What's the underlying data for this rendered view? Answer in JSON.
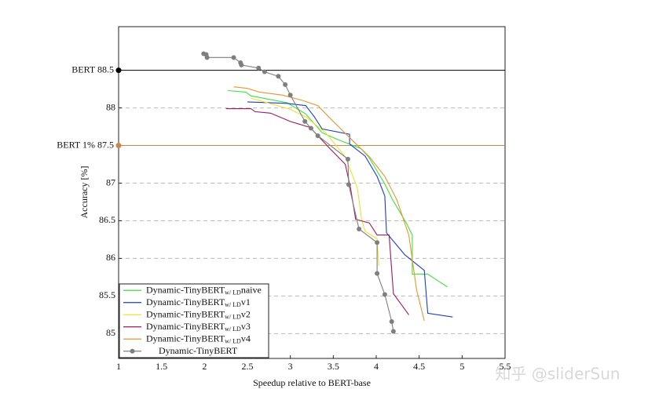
{
  "chart_data": {
    "type": "line",
    "xlabel": "Speedup relative to BERT-base",
    "ylabel": "Accuracy [%]",
    "xlim": [
      1,
      5.5
    ],
    "ylim": [
      84.67,
      89.08
    ],
    "xticks": [
      1,
      1.5,
      2,
      2.5,
      3,
      3.5,
      4,
      4.5,
      5,
      5.5
    ],
    "yticks": [
      85,
      85.5,
      86,
      86.5,
      87,
      88
    ],
    "grid": true,
    "legend": "lower left",
    "reference_lines": [
      {
        "value": 88.5,
        "label": "BERT 88.5",
        "color": "#000000"
      },
      {
        "value": 87.5,
        "label": "BERT 1% 87.5",
        "color": "#c8874a"
      }
    ],
    "series": [
      {
        "name": "Dynamic-TinyBERT",
        "subscript": "w/ LD",
        "suffix": "naive",
        "color": "#3ee03e",
        "markers": false,
        "x": [
          2.27,
          2.48,
          2.54,
          2.96,
          3.18,
          3.37,
          3.55,
          3.82,
          3.91,
          4.1,
          4.19,
          4.35,
          4.42,
          4.42,
          4.6,
          4.83
        ],
        "values": [
          88.23,
          88.21,
          88.16,
          88.07,
          87.92,
          87.67,
          87.58,
          87.46,
          87.35,
          86.99,
          86.78,
          86.47,
          86.31,
          85.79,
          85.79,
          85.62
        ]
      },
      {
        "name": "Dynamic-TinyBERT",
        "subscript": "w/ LD",
        "suffix": "v1",
        "color": "#1a3fc4",
        "markers": false,
        "x": [
          2.5,
          2.96,
          3.18,
          3.28,
          3.37,
          3.69,
          3.69,
          3.87,
          4.01,
          4.1,
          4.12,
          4.33,
          4.56,
          4.6,
          4.89
        ],
        "values": [
          88.08,
          88.06,
          88.03,
          87.88,
          87.72,
          87.65,
          87.52,
          87.36,
          87.09,
          86.83,
          86.34,
          86.05,
          85.84,
          85.27,
          85.22
        ]
      },
      {
        "name": "Dynamic-TinyBERT",
        "subscript": "w/ LD",
        "suffix": "v2",
        "color": "#f0e030",
        "markers": false,
        "x": [
          2.54,
          3.0,
          3.18,
          3.41,
          3.64,
          3.78,
          3.83,
          3.87,
          4.01,
          4.03
        ],
        "values": [
          88.13,
          87.98,
          87.88,
          87.67,
          87.35,
          86.94,
          86.52,
          86.36,
          86.26,
          85.9
        ]
      },
      {
        "name": "Dynamic-TinyBERT",
        "subscript": "w/ LD",
        "suffix": "v3",
        "color": "#9c1a5a",
        "markers": false,
        "x": [
          2.25,
          2.54,
          2.59,
          2.77,
          3.0,
          3.23,
          3.46,
          3.64,
          3.7,
          3.76,
          3.92,
          4.01,
          4.15,
          4.2,
          4.38
        ],
        "values": [
          87.99,
          87.99,
          87.95,
          87.93,
          87.82,
          87.74,
          87.46,
          87.25,
          86.94,
          86.52,
          86.47,
          86.31,
          86.31,
          85.53,
          85.25
        ]
      },
      {
        "name": "Dynamic-TinyBERT",
        "subscript": "w/ LD",
        "suffix": "v4",
        "color": "#e8962e",
        "markers": false,
        "x": [
          2.34,
          2.5,
          2.64,
          2.91,
          3.14,
          3.32,
          3.5,
          3.73,
          3.92,
          4.1,
          4.24,
          4.38,
          4.47,
          4.56
        ],
        "values": [
          88.28,
          88.26,
          88.21,
          88.17,
          88.1,
          88.03,
          87.82,
          87.56,
          87.35,
          87.09,
          86.78,
          86.31,
          85.58,
          85.17
        ]
      },
      {
        "name": "Dynamic-TinyBERT",
        "color": "#7f7f7f",
        "markers": true,
        "x": [
          1.99,
          2.02,
          2.03,
          2.34,
          2.42,
          2.43,
          2.63,
          2.7,
          2.86,
          2.94,
          3.0,
          3.17,
          3.24,
          3.32,
          3.67,
          3.68,
          3.8,
          4.01,
          4.01,
          4.1,
          4.18,
          4.2
        ],
        "values": [
          88.72,
          88.71,
          88.67,
          88.67,
          88.6,
          88.57,
          88.53,
          88.48,
          88.42,
          88.31,
          88.17,
          87.82,
          87.73,
          87.63,
          87.32,
          86.98,
          86.39,
          86.21,
          85.8,
          85.52,
          85.16,
          85.03
        ]
      }
    ],
    "watermark": "知乎 @sliderSun"
  }
}
